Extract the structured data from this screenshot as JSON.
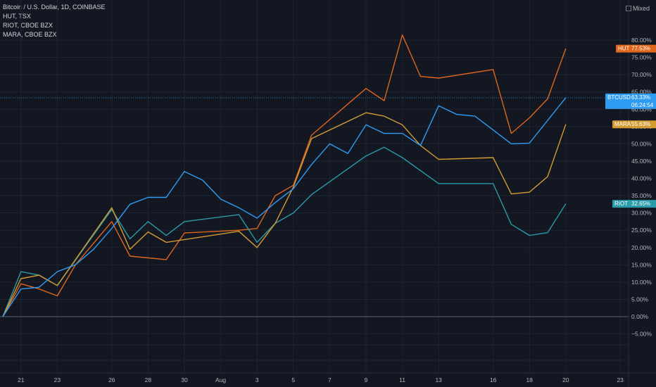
{
  "legend": {
    "line1": "Bitcoin / U.S. Dollar, 1D, COINBASE",
    "line2": "HUT, TSX",
    "line3": "RIOT, CBOE BZX",
    "line4": "MARA, CBOE BZX"
  },
  "toolbar": {
    "mixed_label": "Mixed"
  },
  "chart_data": {
    "type": "line",
    "y_unit": "percent",
    "ylim": [
      -8,
      83
    ],
    "y_ticks": [
      -5,
      0,
      5,
      10,
      15,
      20,
      25,
      30,
      35,
      40,
      45,
      50,
      55,
      60,
      65,
      70,
      75,
      80
    ],
    "y_tick_labels": [
      "−5.00%",
      "0.00%",
      "5.00%",
      "10.00%",
      "15.00%",
      "20.00%",
      "25.00%",
      "30.00%",
      "35.00%",
      "40.00%",
      "45.00%",
      "50.00%",
      "55.00%",
      "60.00%",
      "65.00%",
      "70.00%",
      "75.00%",
      "80.00%"
    ],
    "x_ticks": [
      {
        "date": "2023-07-21",
        "label": "21"
      },
      {
        "date": "2023-07-23",
        "label": "23"
      },
      {
        "date": "2023-07-26",
        "label": "26"
      },
      {
        "date": "2023-07-28",
        "label": "28"
      },
      {
        "date": "2023-07-30",
        "label": "30"
      },
      {
        "date": "2023-08-01",
        "label": "Aug"
      },
      {
        "date": "2023-08-03",
        "label": "3"
      },
      {
        "date": "2023-08-05",
        "label": "5"
      },
      {
        "date": "2023-08-07",
        "label": "7"
      },
      {
        "date": "2023-08-09",
        "label": "9"
      },
      {
        "date": "2023-08-11",
        "label": "11"
      },
      {
        "date": "2023-08-13",
        "label": "13"
      },
      {
        "date": "2023-08-16",
        "label": "16"
      },
      {
        "date": "2023-08-18",
        "label": "18"
      },
      {
        "date": "2023-08-20",
        "label": "20"
      },
      {
        "date": "2023-08-23",
        "label": "23"
      }
    ],
    "x_range": [
      "2023-07-20",
      "2023-08-25"
    ],
    "series": [
      {
        "name": "HUT",
        "color": "#e0651d",
        "badge_value": "77.53%",
        "points": [
          [
            "2023-07-20",
            0
          ],
          [
            "2023-07-21",
            9.5
          ],
          [
            "2023-07-22",
            8
          ],
          [
            "2023-07-23",
            6
          ],
          [
            "2023-07-24",
            15
          ],
          [
            "2023-07-26",
            27.5
          ],
          [
            "2023-07-27",
            17.5
          ],
          [
            "2023-07-28",
            17
          ],
          [
            "2023-07-29",
            16.5
          ],
          [
            "2023-07-30",
            24.2
          ],
          [
            "2023-08-02",
            25
          ],
          [
            "2023-08-03",
            25.5
          ],
          [
            "2023-08-04",
            35
          ],
          [
            "2023-08-05",
            38
          ],
          [
            "2023-08-06",
            52.5
          ],
          [
            "2023-08-09",
            66
          ],
          [
            "2023-08-10",
            62.5
          ],
          [
            "2023-08-11",
            81.5
          ],
          [
            "2023-08-12",
            69.5
          ],
          [
            "2023-08-13",
            69
          ],
          [
            "2023-08-16",
            71.5
          ],
          [
            "2023-08-17",
            53
          ],
          [
            "2023-08-18",
            57.5
          ],
          [
            "2023-08-19",
            63
          ],
          [
            "2023-08-20",
            77.53
          ]
        ]
      },
      {
        "name": "RIOT",
        "color": "#2a9ba8",
        "badge_value": "32.65%",
        "points": [
          [
            "2023-07-20",
            0
          ],
          [
            "2023-07-21",
            13
          ],
          [
            "2023-07-22",
            12
          ],
          [
            "2023-07-23",
            9
          ],
          [
            "2023-07-26",
            31
          ],
          [
            "2023-07-27",
            22.5
          ],
          [
            "2023-07-28",
            27.5
          ],
          [
            "2023-07-29",
            23.5
          ],
          [
            "2023-07-30",
            27.5
          ],
          [
            "2023-08-02",
            29.5
          ],
          [
            "2023-08-03",
            21.5
          ],
          [
            "2023-08-04",
            27
          ],
          [
            "2023-08-05",
            30
          ],
          [
            "2023-08-06",
            35.3
          ],
          [
            "2023-08-09",
            46.5
          ],
          [
            "2023-08-10",
            49
          ],
          [
            "2023-08-11",
            46
          ],
          [
            "2023-08-13",
            38.5
          ],
          [
            "2023-08-16",
            38.5
          ],
          [
            "2023-08-17",
            26.7
          ],
          [
            "2023-08-18",
            23.5
          ],
          [
            "2023-08-19",
            24.3
          ],
          [
            "2023-08-20",
            32.65
          ]
        ]
      },
      {
        "name": "MARA",
        "color": "#d49b32",
        "badge_value": "55.63%",
        "points": [
          [
            "2023-07-20",
            0
          ],
          [
            "2023-07-21",
            11
          ],
          [
            "2023-07-22",
            12
          ],
          [
            "2023-07-23",
            9
          ],
          [
            "2023-07-26",
            31.5
          ],
          [
            "2023-07-27",
            19.5
          ],
          [
            "2023-07-28",
            24.5
          ],
          [
            "2023-07-29",
            21.5
          ],
          [
            "2023-08-02",
            24.7
          ],
          [
            "2023-08-03",
            20
          ],
          [
            "2023-08-04",
            27
          ],
          [
            "2023-08-05",
            37.5
          ],
          [
            "2023-08-06",
            51.5
          ],
          [
            "2023-08-09",
            59
          ],
          [
            "2023-08-10",
            58
          ],
          [
            "2023-08-11",
            55.5
          ],
          [
            "2023-08-12",
            49.5
          ],
          [
            "2023-08-13",
            45.5
          ],
          [
            "2023-08-16",
            46
          ],
          [
            "2023-08-17",
            35.5
          ],
          [
            "2023-08-18",
            36
          ],
          [
            "2023-08-19",
            40.5
          ],
          [
            "2023-08-20",
            55.63
          ]
        ]
      },
      {
        "name": "BTCUSD",
        "color": "#2f9cf2",
        "badge_value": "63.33%",
        "badge_countdown": "06:24:54",
        "points": [
          [
            "2023-07-20",
            0
          ],
          [
            "2023-07-21",
            8
          ],
          [
            "2023-07-22",
            8.5
          ],
          [
            "2023-07-23",
            13
          ],
          [
            "2023-07-24",
            15
          ],
          [
            "2023-07-25",
            19.5
          ],
          [
            "2023-07-26",
            25.5
          ],
          [
            "2023-07-27",
            32.5
          ],
          [
            "2023-07-28",
            34.5
          ],
          [
            "2023-07-29",
            34.5
          ],
          [
            "2023-07-30",
            42
          ],
          [
            "2023-07-31",
            39.5
          ],
          [
            "2023-08-01",
            34
          ],
          [
            "2023-08-02",
            31.5
          ],
          [
            "2023-08-03",
            28.5
          ],
          [
            "2023-08-04",
            33
          ],
          [
            "2023-08-05",
            37
          ],
          [
            "2023-08-06",
            44
          ],
          [
            "2023-08-07",
            50
          ],
          [
            "2023-08-08",
            47.2
          ],
          [
            "2023-08-09",
            55.5
          ],
          [
            "2023-08-10",
            53
          ],
          [
            "2023-08-11",
            53
          ],
          [
            "2023-08-12",
            49.5
          ],
          [
            "2023-08-13",
            61
          ],
          [
            "2023-08-14",
            58.5
          ],
          [
            "2023-08-15",
            58
          ],
          [
            "2023-08-17",
            50
          ],
          [
            "2023-08-18",
            50.2
          ],
          [
            "2023-08-20",
            63.33
          ]
        ]
      }
    ]
  }
}
